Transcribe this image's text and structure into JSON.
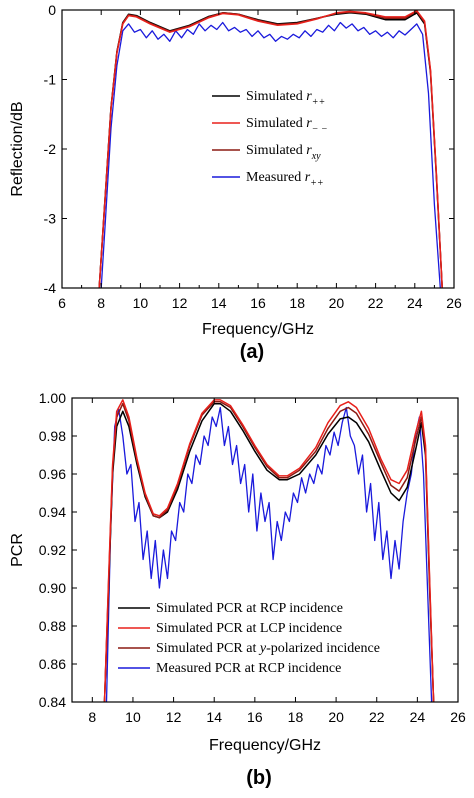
{
  "chart_data": [
    {
      "type": "line",
      "panel_label": "(a)",
      "xlabel": "Frequency/GHz",
      "ylabel": "Reflection/dB",
      "xlim": [
        6,
        26
      ],
      "ylim": [
        -4,
        0
      ],
      "xticks": [
        "6",
        "8",
        "10",
        "12",
        "14",
        "16",
        "18",
        "20",
        "22",
        "24",
        "26"
      ],
      "yticks": [
        "0",
        "-1",
        "-2",
        "-3",
        "-4"
      ],
      "legend_position": "center",
      "series": [
        {
          "name": "Simulated r++",
          "legend_text": "Simulated ",
          "legend_symbol": "r",
          "legend_sub": "++",
          "color": "#000000",
          "x": [
            7.9,
            8.2,
            8.5,
            8.8,
            9.1,
            9.4,
            9.8,
            10.5,
            11.5,
            12.5,
            13.5,
            14.2,
            15,
            16,
            17,
            18,
            19,
            20,
            20.7,
            21.5,
            22.5,
            23.5,
            24.1,
            24.5,
            24.8,
            25.1,
            25.4
          ],
          "y": [
            -4,
            -2.7,
            -1.4,
            -0.6,
            -0.18,
            -0.06,
            -0.08,
            -0.18,
            -0.3,
            -0.22,
            -0.09,
            -0.04,
            -0.06,
            -0.14,
            -0.2,
            -0.18,
            -0.12,
            -0.06,
            -0.04,
            -0.06,
            -0.14,
            -0.14,
            -0.04,
            -0.2,
            -0.9,
            -2.4,
            -4
          ]
        },
        {
          "name": "Simulated r--",
          "legend_text": "Simulated ",
          "legend_symbol": "r",
          "legend_sub": "− −",
          "color": "#e8201b",
          "x": [
            7.9,
            8.2,
            8.5,
            8.8,
            9.1,
            9.4,
            9.8,
            10.5,
            11.5,
            12.5,
            13.5,
            14.2,
            15,
            16,
            17,
            18,
            19,
            20,
            20.7,
            21.5,
            22.5,
            23.5,
            24.1,
            24.5,
            24.8,
            25.1,
            25.4
          ],
          "y": [
            -4,
            -2.72,
            -1.42,
            -0.62,
            -0.2,
            -0.08,
            -0.1,
            -0.2,
            -0.32,
            -0.24,
            -0.11,
            -0.05,
            -0.07,
            -0.16,
            -0.22,
            -0.2,
            -0.13,
            -0.04,
            -0.02,
            -0.04,
            -0.1,
            -0.1,
            -0.01,
            -0.16,
            -0.86,
            -2.36,
            -4
          ]
        },
        {
          "name": "Simulated rxy",
          "legend_text": "Simulated ",
          "legend_symbol": "r",
          "legend_sub": "xy",
          "color": "#8b1a12",
          "x": [
            7.9,
            8.2,
            8.5,
            8.8,
            9.1,
            9.4,
            9.8,
            10.5,
            11.5,
            12.5,
            13.5,
            14.2,
            15,
            16,
            17,
            18,
            19,
            20,
            20.7,
            21.5,
            22.5,
            23.5,
            24.1,
            24.5,
            24.8,
            25.1,
            25.4
          ],
          "y": [
            -4,
            -2.71,
            -1.41,
            -0.61,
            -0.19,
            -0.07,
            -0.09,
            -0.19,
            -0.31,
            -0.23,
            -0.1,
            -0.04,
            -0.06,
            -0.15,
            -0.21,
            -0.19,
            -0.12,
            -0.05,
            -0.03,
            -0.05,
            -0.12,
            -0.12,
            -0.02,
            -0.18,
            -0.88,
            -2.38,
            -4
          ]
        },
        {
          "name": "Measured r++",
          "legend_text": "Measured ",
          "legend_symbol": "r",
          "legend_sub": "++",
          "color": "#1a1adc",
          "x": [
            8.0,
            8.2,
            8.5,
            8.8,
            9.1,
            9.4,
            9.7,
            10.0,
            10.3,
            10.6,
            10.9,
            11.2,
            11.5,
            11.8,
            12.1,
            12.4,
            12.7,
            13.0,
            13.3,
            13.6,
            13.9,
            14.2,
            14.5,
            14.8,
            15.1,
            15.4,
            15.7,
            16.0,
            16.3,
            16.6,
            16.9,
            17.2,
            17.5,
            17.8,
            18.1,
            18.4,
            18.7,
            19.0,
            19.3,
            19.6,
            19.9,
            20.2,
            20.5,
            20.8,
            21.1,
            21.4,
            21.7,
            22.0,
            22.3,
            22.6,
            22.9,
            23.2,
            23.5,
            23.8,
            24.1,
            24.4,
            24.7,
            25.0,
            25.3
          ],
          "y": [
            -4,
            -3.1,
            -1.7,
            -0.8,
            -0.3,
            -0.2,
            -0.32,
            -0.28,
            -0.4,
            -0.3,
            -0.42,
            -0.35,
            -0.45,
            -0.3,
            -0.4,
            -0.28,
            -0.35,
            -0.2,
            -0.3,
            -0.22,
            -0.28,
            -0.18,
            -0.3,
            -0.25,
            -0.32,
            -0.28,
            -0.38,
            -0.3,
            -0.4,
            -0.35,
            -0.45,
            -0.38,
            -0.42,
            -0.35,
            -0.4,
            -0.3,
            -0.38,
            -0.28,
            -0.32,
            -0.22,
            -0.3,
            -0.18,
            -0.26,
            -0.2,
            -0.3,
            -0.25,
            -0.35,
            -0.3,
            -0.38,
            -0.32,
            -0.4,
            -0.3,
            -0.36,
            -0.28,
            -0.2,
            -0.35,
            -1.2,
            -2.8,
            -4
          ]
        }
      ]
    },
    {
      "type": "line",
      "panel_label": "(b)",
      "xlabel": "Frequency/GHz",
      "ylabel": "PCR",
      "xlim": [
        7,
        26
      ],
      "ylim": [
        0.84,
        1.0
      ],
      "xticks": [
        "8",
        "10",
        "12",
        "14",
        "16",
        "18",
        "20",
        "22",
        "24",
        "26"
      ],
      "yticks": [
        "1.00",
        "0.98",
        "0.96",
        "0.94",
        "0.92",
        "0.90",
        "0.88",
        "0.86",
        "0.84"
      ],
      "legend_position": "bottom-left",
      "series": [
        {
          "name": "Simulated PCR at RCP incidence",
          "legend_parts": [
            "Simulated PCR at RCP incidence"
          ],
          "color": "#000000",
          "x": [
            8.6,
            8.8,
            9.0,
            9.2,
            9.5,
            9.8,
            10.2,
            10.6,
            11.0,
            11.3,
            11.7,
            12.2,
            12.8,
            13.4,
            14.0,
            14.3,
            14.8,
            15.4,
            16.0,
            16.6,
            17.2,
            17.6,
            18.2,
            19.0,
            19.6,
            20.2,
            20.6,
            21.0,
            21.6,
            22.2,
            22.7,
            23.1,
            23.5,
            23.9,
            24.2,
            24.4,
            24.6,
            24.8
          ],
          "y": [
            0.84,
            0.9,
            0.96,
            0.985,
            0.993,
            0.985,
            0.965,
            0.948,
            0.938,
            0.937,
            0.94,
            0.952,
            0.972,
            0.988,
            0.997,
            0.997,
            0.993,
            0.983,
            0.972,
            0.962,
            0.957,
            0.957,
            0.96,
            0.97,
            0.981,
            0.989,
            0.99,
            0.987,
            0.977,
            0.962,
            0.95,
            0.946,
            0.953,
            0.972,
            0.987,
            0.97,
            0.9,
            0.84
          ]
        },
        {
          "name": "Simulated PCR at LCP incidence",
          "legend_parts": [
            "Simulated PCR at LCP incidence"
          ],
          "color": "#e8201b",
          "x": [
            8.6,
            8.8,
            9.0,
            9.2,
            9.5,
            9.8,
            10.2,
            10.6,
            11.0,
            11.3,
            11.7,
            12.2,
            12.8,
            13.4,
            14.0,
            14.3,
            14.8,
            15.4,
            16.0,
            16.6,
            17.2,
            17.6,
            18.2,
            19.0,
            19.6,
            20.2,
            20.6,
            21.0,
            21.6,
            22.2,
            22.7,
            23.1,
            23.5,
            23.9,
            24.2,
            24.4,
            24.6,
            24.8
          ],
          "y": [
            0.84,
            0.905,
            0.965,
            0.993,
            0.999,
            0.99,
            0.968,
            0.95,
            0.939,
            0.938,
            0.942,
            0.955,
            0.976,
            0.992,
            0.999,
            0.999,
            0.996,
            0.986,
            0.975,
            0.965,
            0.959,
            0.959,
            0.963,
            0.974,
            0.987,
            0.996,
            0.998,
            0.995,
            0.984,
            0.968,
            0.957,
            0.955,
            0.962,
            0.981,
            0.993,
            0.975,
            0.905,
            0.84
          ]
        },
        {
          "name": "Simulated PCR at y-polarized incidence",
          "legend_parts": [
            "Simulated PCR at ",
            "y",
            "-polarized incidence"
          ],
          "color": "#8b1a12",
          "x": [
            8.6,
            8.8,
            9.0,
            9.2,
            9.5,
            9.8,
            10.2,
            10.6,
            11.0,
            11.3,
            11.7,
            12.2,
            12.8,
            13.4,
            14.0,
            14.3,
            14.8,
            15.4,
            16.0,
            16.6,
            17.2,
            17.6,
            18.2,
            19.0,
            19.6,
            20.2,
            20.6,
            21.0,
            21.6,
            22.2,
            22.7,
            23.1,
            23.5,
            23.9,
            24.2,
            24.4,
            24.6,
            24.8
          ],
          "y": [
            0.84,
            0.903,
            0.963,
            0.99,
            0.997,
            0.988,
            0.967,
            0.949,
            0.938,
            0.937,
            0.941,
            0.954,
            0.975,
            0.991,
            0.998,
            0.998,
            0.995,
            0.985,
            0.974,
            0.964,
            0.958,
            0.958,
            0.962,
            0.972,
            0.984,
            0.993,
            0.995,
            0.992,
            0.981,
            0.966,
            0.954,
            0.951,
            0.958,
            0.977,
            0.99,
            0.973,
            0.903,
            0.84
          ]
        },
        {
          "name": "Measured PCR at RCP incidence",
          "legend_parts": [
            "Measured PCR at RCP incidence"
          ],
          "color": "#1a1adc",
          "x": [
            8.7,
            8.9,
            9.1,
            9.3,
            9.5,
            9.7,
            9.9,
            10.1,
            10.3,
            10.5,
            10.7,
            10.9,
            11.1,
            11.3,
            11.5,
            11.7,
            11.9,
            12.1,
            12.3,
            12.5,
            12.7,
            12.9,
            13.1,
            13.3,
            13.5,
            13.7,
            13.9,
            14.1,
            14.3,
            14.5,
            14.7,
            14.9,
            15.1,
            15.3,
            15.5,
            15.7,
            15.9,
            16.1,
            16.3,
            16.5,
            16.7,
            16.9,
            17.1,
            17.3,
            17.5,
            17.7,
            17.9,
            18.1,
            18.3,
            18.5,
            18.7,
            18.9,
            19.1,
            19.3,
            19.5,
            19.7,
            19.9,
            20.1,
            20.3,
            20.5,
            20.7,
            20.9,
            21.1,
            21.3,
            21.5,
            21.7,
            21.9,
            22.1,
            22.3,
            22.5,
            22.7,
            22.9,
            23.1,
            23.3,
            23.5,
            23.7,
            23.9,
            24.1,
            24.3,
            24.5,
            24.7
          ],
          "y": [
            0.84,
            0.93,
            0.985,
            0.994,
            0.98,
            0.96,
            0.965,
            0.935,
            0.945,
            0.915,
            0.93,
            0.905,
            0.925,
            0.9,
            0.92,
            0.905,
            0.93,
            0.925,
            0.945,
            0.94,
            0.96,
            0.955,
            0.97,
            0.965,
            0.98,
            0.975,
            0.99,
            0.985,
            0.995,
            0.975,
            0.985,
            0.965,
            0.975,
            0.955,
            0.965,
            0.94,
            0.96,
            0.93,
            0.95,
            0.935,
            0.945,
            0.915,
            0.935,
            0.925,
            0.94,
            0.935,
            0.95,
            0.945,
            0.958,
            0.95,
            0.96,
            0.955,
            0.965,
            0.96,
            0.975,
            0.97,
            0.982,
            0.975,
            0.987,
            0.995,
            0.98,
            0.975,
            0.96,
            0.97,
            0.94,
            0.955,
            0.925,
            0.945,
            0.915,
            0.93,
            0.905,
            0.925,
            0.91,
            0.935,
            0.95,
            0.96,
            0.98,
            0.99,
            0.96,
            0.9,
            0.84
          ]
        }
      ]
    }
  ]
}
